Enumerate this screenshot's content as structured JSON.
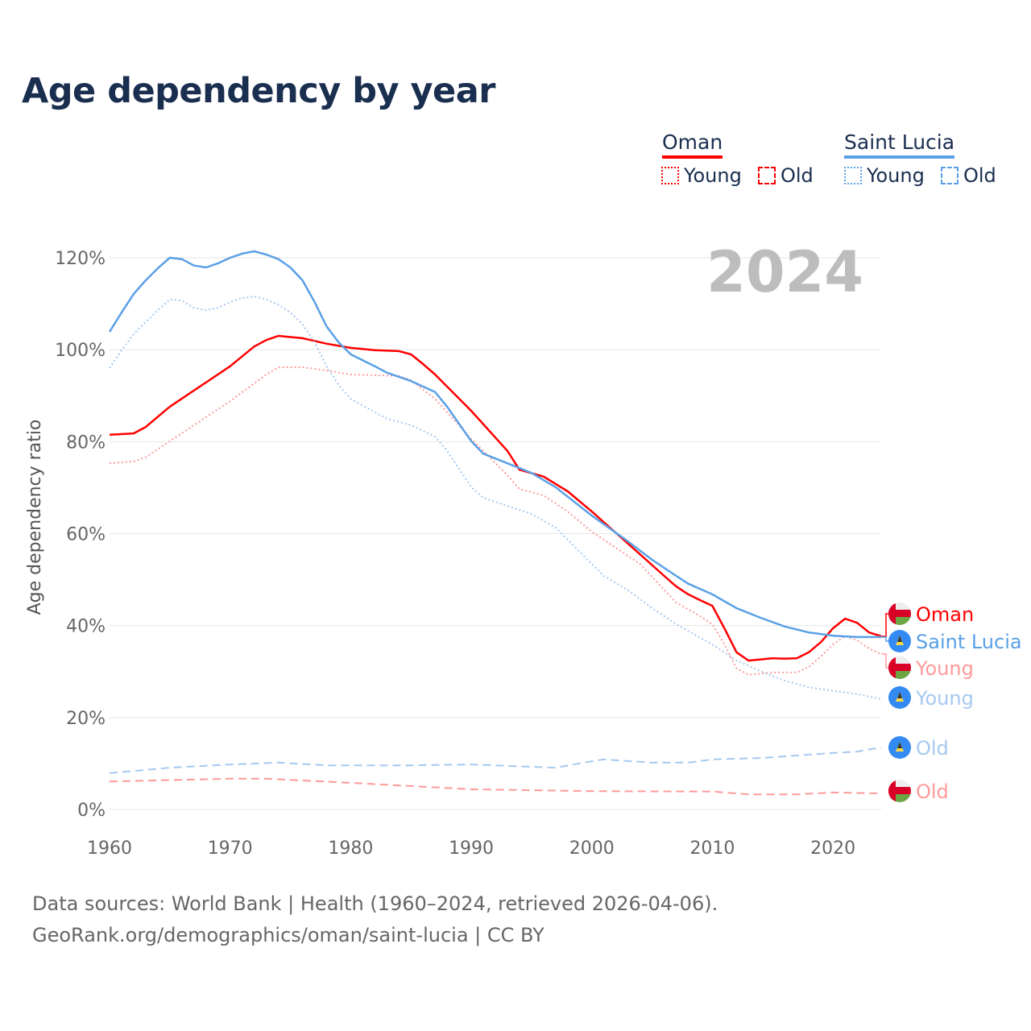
{
  "colors": {
    "oman": "#ff0000",
    "oman_light": "#ff9a9a",
    "saint_lucia": "#5aa0e6",
    "saint_lucia_light": "#a6c9f0",
    "grid": "#e6e6e6",
    "title": "#1a2e4f"
  },
  "legend": {
    "groups": [
      {
        "name": "Oman",
        "items": [
          "Young",
          "Old"
        ]
      },
      {
        "name": "Saint Lucia",
        "items": [
          "Young",
          "Old"
        ]
      }
    ]
  },
  "year_label": "2024",
  "end_labels": [
    "Oman",
    "Saint Lucia",
    "Young",
    "Young",
    "Old",
    "Old"
  ],
  "footer": {
    "line1": "Data sources: World Bank | Health (1960–2024, retrieved 2026-04-06).",
    "line2": "GeoRank.org/demographics/oman/saint-lucia | CC BY"
  },
  "chart_data": {
    "type": "line",
    "title": "Age dependency by year",
    "xlabel": "",
    "ylabel": "Age dependency ratio",
    "xlim": [
      1960,
      2024
    ],
    "ylim": [
      0,
      120
    ],
    "x_ticks": [
      "1960",
      "1970",
      "1980",
      "1990",
      "2000",
      "2010",
      "2020"
    ],
    "y_ticks": [
      "0%",
      "20%",
      "40%",
      "60%",
      "80%",
      "100%",
      "120%"
    ],
    "grid": true,
    "legend_position": "top-right",
    "series": [
      {
        "name": "Oman",
        "style": "solid",
        "color_key": "oman",
        "x": [
          1960,
          1962,
          1963,
          1965,
          1970,
          1972,
          1973,
          1974,
          1976,
          1978,
          1980,
          1982,
          1984,
          1985,
          1986,
          1987,
          1990,
          1993,
          1994,
          1996,
          1998,
          2000,
          2004,
          2006,
          2007,
          2008,
          2009,
          2010,
          2011,
          2012,
          2013,
          2015,
          2016,
          2017,
          2018,
          2019,
          2020,
          2021,
          2022,
          2023,
          2024
        ],
        "values": [
          81.5,
          81.8,
          83.2,
          87.6,
          96.4,
          100.7,
          102.1,
          103,
          102.5,
          101.3,
          100.4,
          99.9,
          99.7,
          99,
          96.9,
          94.6,
          86.7,
          78,
          73.9,
          72.4,
          69.2,
          64.8,
          55.5,
          50.8,
          48.5,
          46.8,
          45.5,
          44.3,
          39.4,
          34.2,
          32.4,
          32.9,
          32.8,
          32.9,
          34.2,
          36.4,
          39.4,
          41.5,
          40.6,
          38.5,
          37.7
        ]
      },
      {
        "name": "Oman Young",
        "style": "dotted",
        "color_key": "oman_light",
        "x": [
          1960,
          1962,
          1963,
          1965,
          1970,
          1973,
          1974,
          1976,
          1978,
          1980,
          1984,
          1985,
          1987,
          1990,
          1993,
          1994,
          1996,
          1998,
          2000,
          2004,
          2007,
          2009,
          2010,
          2011,
          2012,
          2013,
          2015,
          2017,
          2018,
          2019,
          2020,
          2021,
          2022,
          2023,
          2024
        ],
        "values": [
          75.3,
          75.7,
          76.6,
          80.1,
          88.8,
          94.6,
          96.2,
          96.2,
          95.5,
          94.6,
          94.3,
          93.4,
          89.3,
          80.6,
          72.7,
          69.7,
          68.3,
          64.8,
          60.4,
          53.4,
          45,
          42,
          40.3,
          35.9,
          30.7,
          29.3,
          29.8,
          29.8,
          31,
          33.3,
          35.9,
          37.7,
          36.8,
          35,
          33.8
        ]
      },
      {
        "name": "Oman Old",
        "style": "dashed",
        "color_key": "oman_light",
        "x": [
          1960,
          1970,
          1973,
          1980,
          1990,
          2000,
          2010,
          2013,
          2017,
          2020,
          2024
        ],
        "values": [
          6.1,
          6.7,
          6.7,
          5.8,
          4.4,
          4,
          3.9,
          3.3,
          3.3,
          3.7,
          3.5
        ]
      },
      {
        "name": "Saint Lucia",
        "style": "solid",
        "color_key": "saint_lucia",
        "x": [
          1960,
          1961,
          1962,
          1963,
          1964,
          1965,
          1966,
          1967,
          1968,
          1969,
          1970,
          1971,
          1972,
          1973,
          1974,
          1975,
          1976,
          1977,
          1978,
          1979,
          1980,
          1982,
          1983,
          1985,
          1987,
          1988,
          1990,
          1991,
          1993,
          1995,
          1997,
          2000,
          2003,
          2005,
          2007,
          2008,
          2010,
          2012,
          2014,
          2016,
          2018,
          2020,
          2022,
          2024
        ],
        "values": [
          103.9,
          108.1,
          112.1,
          115.1,
          117.7,
          120,
          119.7,
          118.3,
          117.9,
          118.8,
          120,
          120.9,
          121.4,
          120.7,
          119.7,
          117.9,
          115.1,
          110.4,
          105.1,
          101.6,
          99,
          96.4,
          95,
          93.2,
          90.8,
          87.6,
          80.1,
          77.4,
          75.3,
          73.2,
          70.1,
          63.9,
          58.3,
          54.3,
          50.8,
          49.1,
          46.8,
          43.8,
          41.7,
          39.8,
          38.5,
          37.8,
          37.5,
          37.5
        ]
      },
      {
        "name": "Saint Lucia Young",
        "style": "dotted",
        "color_key": "saint_lucia_light",
        "x": [
          1960,
          1961,
          1962,
          1963,
          1964,
          1965,
          1966,
          1967,
          1968,
          1969,
          1970,
          1971,
          1972,
          1973,
          1974,
          1975,
          1976,
          1977,
          1978,
          1979,
          1980,
          1982,
          1983,
          1985,
          1987,
          1988,
          1990,
          1991,
          1993,
          1995,
          1997,
          2000,
          2001,
          2003,
          2005,
          2007,
          2010,
          2012,
          2014,
          2016,
          2018,
          2020,
          2022,
          2024
        ],
        "values": [
          96,
          99.9,
          103.4,
          106,
          108.6,
          110.9,
          110.7,
          109.1,
          108.6,
          109.1,
          110.4,
          111.2,
          111.6,
          110.9,
          109.8,
          108.1,
          105.6,
          101.6,
          96.4,
          92.3,
          89.3,
          86.4,
          85,
          83.6,
          81.1,
          78,
          70.1,
          67.8,
          66,
          64.3,
          61.3,
          53.4,
          50.8,
          47.7,
          43.8,
          40.3,
          35.9,
          32.4,
          30.1,
          28,
          26.6,
          25.8,
          25.1,
          24
        ]
      },
      {
        "name": "Saint Lucia Old",
        "style": "dashed",
        "color_key": "saint_lucia_light",
        "x": [
          1960,
          1965,
          1970,
          1974,
          1978,
          1985,
          1990,
          1997,
          2000,
          2001,
          2005,
          2008,
          2010,
          2014,
          2020,
          2022,
          2024
        ],
        "values": [
          7.9,
          9.1,
          9.8,
          10.2,
          9.6,
          9.6,
          9.8,
          9.1,
          10.5,
          10.9,
          10.2,
          10.2,
          10.9,
          11.2,
          12.3,
          12.6,
          13.5
        ]
      }
    ]
  }
}
